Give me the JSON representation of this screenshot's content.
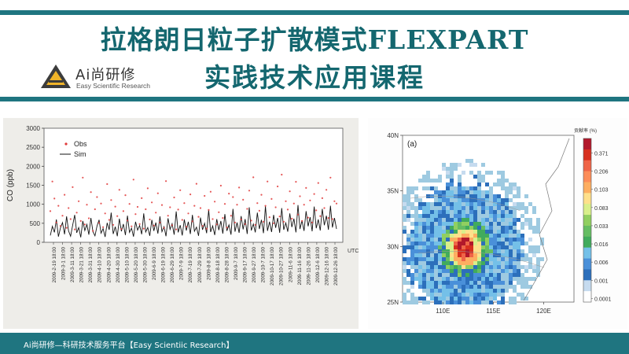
{
  "slide": {
    "title_line1": "拉格朗日粒子扩散模式FLEXPART",
    "title_line2": "实践技术应用课程",
    "logo_name": "Ai尚研修",
    "logo_subtitle": "Easy Scientific Research",
    "footer_text": "Ai尚研修—科研技术服务平台【Easy Scientiic Research】",
    "colors": {
      "teal": "#1f7580",
      "title": "#14676f"
    }
  },
  "chart_data": [
    {
      "type": "line",
      "ylabel": "CO (ppb)",
      "ylim": [
        0,
        3000
      ],
      "yticks": [
        "0",
        "500",
        "1000",
        "1500",
        "2000",
        "2500",
        "3000"
      ],
      "unit_label": "UTC",
      "x_tick_labels": [
        "2009-2-19 18:00",
        "2009-3-1 18:00",
        "2009-3-11 18:00",
        "2009-3-21 18:00",
        "2009-3-31 18:00",
        "2009-4-10 18:00",
        "2009-4-20 18:00",
        "2009-4-30 18:00",
        "2009-5-10 18:00",
        "2009-5-20 18:00",
        "2009-5-30 18:00",
        "2009-6-9 18:00",
        "2009-6-19 18:00",
        "2009-6-29 18:00",
        "2009-7-9 18:00",
        "2009-7-19 18:00",
        "2009-7-29 18:00",
        "2009-8-8 18:00",
        "2009-8-18 18:00",
        "2009-8-28 18:00",
        "2009-9-7 18:00",
        "2009-9-17 18:00",
        "2009-9-27 18:00",
        "2009-10-7 18:00",
        "2009-10-17 18:00",
        "2009-10-27 18:00",
        "2009-11-6 18:00",
        "2009-11-16 18:00",
        "2009-11-26 18:00",
        "2009-12-6 18:00",
        "2009-12-16 18:00",
        "2009-12-26 18:00"
      ],
      "series": [
        {
          "name": "Obs",
          "color": "#e03a3a",
          "marker": "dot",
          "values": [
            820,
            1600,
            1150,
            520,
            960,
            430,
            700,
            1250,
            380,
            900,
            610,
            1450,
            340,
            780,
            1080,
            560,
            1700,
            470,
            990,
            630,
            1320,
            300,
            870,
            1190,
            510,
            1020,
            400,
            760,
            1530,
            590,
            1110,
            460,
            940,
            690,
            1380,
            350,
            820,
            1240,
            570,
            1010,
            420,
            1650,
            740,
            930,
            480,
            1160,
            360,
            870,
            1420,
            600,
            1050,
            440,
            780,
            1290,
            520,
            980,
            380,
            1610,
            700,
            920,
            450,
            1180,
            340,
            860,
            1370,
            590,
            1030,
            410,
            760,
            1260,
            550,
            960,
            1540,
            670,
            900,
            430,
            1220,
            360,
            850,
            1330,
            610,
            1070,
            470,
            790,
            1490,
            640,
            1010,
            390,
            1280,
            700,
            1190,
            520,
            990,
            1440,
            600,
            1120,
            480,
            880,
            1360,
            570,
            1710,
            460,
            1030,
            830,
            1250,
            540,
            960,
            1600,
            660,
            1140,
            500,
            920,
            1470,
            680,
            1780,
            540,
            1080,
            860,
            1340,
            620,
            1020,
            1590,
            730,
            1210,
            560,
            990,
            1430,
            650,
            1100,
            520,
            1270,
            840,
            1560,
            690,
            1160,
            900,
            1380,
            640,
            1700,
            610,
            1080,
            1020
          ],
          "alpha": 0.85
        },
        {
          "name": "Sim",
          "color": "#111111",
          "marker": "line",
          "values": [
            180,
            420,
            260,
            600,
            150,
            380,
            520,
            210,
            680,
            300,
            160,
            450,
            720,
            250,
            390,
            130,
            560,
            310,
            470,
            200,
            640,
            280,
            170,
            430,
            590,
            240,
            360,
            140,
            510,
            330,
            780,
            220,
            410,
            160,
            620,
            290,
            480,
            190,
            700,
            260,
            370,
            150,
            540,
            320,
            440,
            210,
            760,
            270,
            390,
            170,
            590,
            300,
            520,
            230,
            680,
            280,
            410,
            160,
            630,
            340,
            490,
            200,
            810,
            260,
            450,
            180,
            600,
            310,
            540,
            220,
            720,
            290,
            400,
            170,
            650,
            330,
            500,
            240,
            850,
            270,
            430,
            190,
            610,
            320,
            560,
            230,
            740,
            300,
            460,
            200,
            880,
            280,
            520,
            250,
            690,
            340,
            610,
            220,
            920,
            310,
            480,
            260,
            780,
            350,
            590,
            240,
            950,
            300,
            540,
            270,
            720,
            380,
            640,
            250,
            900,
            330,
            510,
            280,
            760,
            400,
            620,
            260,
            980,
            350,
            570,
            300,
            820,
            420,
            660,
            290,
            940,
            370,
            600,
            310,
            880,
            450,
            700,
            330,
            960,
            390,
            640,
            350
          ]
        }
      ]
    },
    {
      "type": "heatmap",
      "panel_label": "(a)",
      "colorbar_title": "贡献率 (%)",
      "colorbar_ticks": [
        "0.371",
        "0.206",
        "0.103",
        "0.083",
        "0.033",
        "0.016",
        "0.006",
        "0.001",
        "0.0001"
      ],
      "colorbar_colors": [
        "#b2182b",
        "#d7301f",
        "#ef6548",
        "#fc8d59",
        "#fdae61",
        "#fee08b",
        "#d9ef8b",
        "#91cf60",
        "#66bd63",
        "#41ab5d",
        "#74c0e8",
        "#4a90d9",
        "#2c6fbb",
        "#c6dbef",
        "#ffffff"
      ],
      "x_ticks": [
        "110E",
        "115E",
        "120E"
      ],
      "y_ticks": [
        "40N",
        "35N",
        "30N",
        "25N"
      ],
      "xlim": [
        106,
        123
      ],
      "ylim": [
        25,
        40
      ],
      "source_lon": 112,
      "source_lat": 30
    }
  ]
}
